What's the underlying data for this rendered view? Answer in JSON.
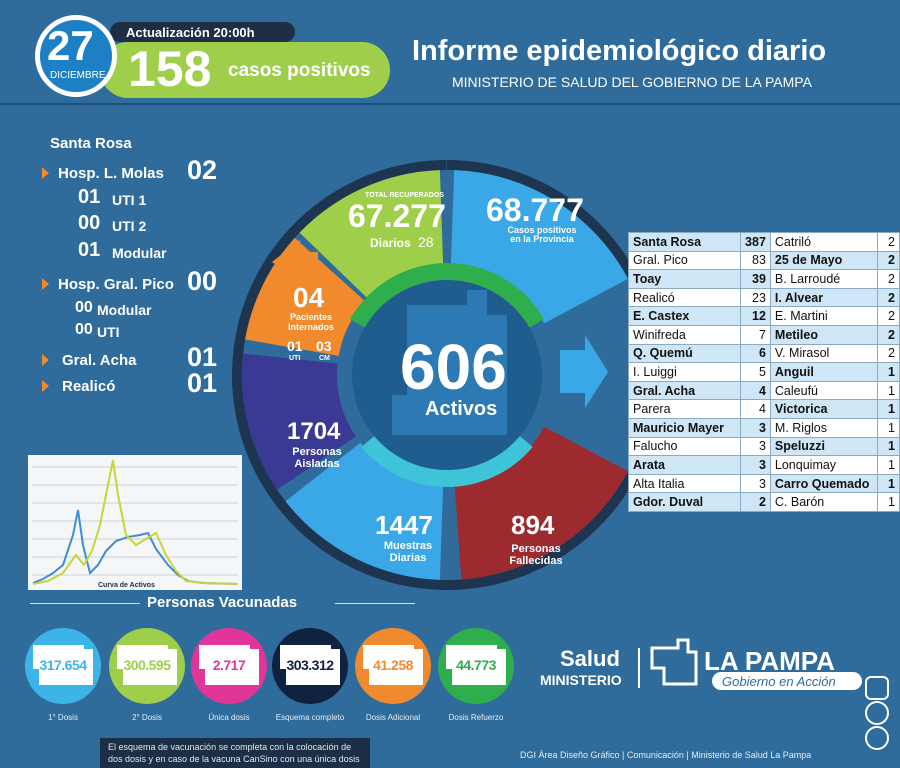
{
  "header": {
    "day": "27",
    "month": "DICIEMBRE",
    "update": "Actualización 20:00h",
    "cases": "158",
    "cases_label": "casos positivos",
    "title": "Informe epidemiológico diario",
    "subtitle": "MINISTERIO DE SALUD DEL GOBIERNO DE LA PAMPA"
  },
  "hospitals": {
    "city": "Santa Rosa",
    "items": [
      {
        "name": "Hosp. L. Molas",
        "value": "02",
        "sub": [
          {
            "value": "01",
            "name": "UTI 1"
          },
          {
            "value": "00",
            "name": "UTI 2"
          },
          {
            "value": "01",
            "name": "Modular"
          }
        ]
      },
      {
        "name": "Hosp. Gral. Pico",
        "value": "00",
        "sub": [
          {
            "value": "00",
            "name": "Modular"
          },
          {
            "value": "00",
            "name": "UTI"
          }
        ]
      },
      {
        "name": "Gral. Acha",
        "value": "01",
        "sub": []
      },
      {
        "name": "Realicó",
        "value": "01",
        "sub": []
      }
    ]
  },
  "wheel": {
    "recovered": {
      "label": "TOTAL RECUPERADOS",
      "value": "67.277",
      "daily_label": "Diarios",
      "daily": "28"
    },
    "positive": {
      "value": "68.777",
      "label": "Casos positivos en la Provincia"
    },
    "hospitalized": {
      "value": "04",
      "label": "Pacientes Internados",
      "uti": "01",
      "uti_label": "UTI",
      "cm": "03",
      "cm_label": "CM"
    },
    "active": {
      "value": "606",
      "label": "Activos"
    },
    "isolated": {
      "value": "1704",
      "label": "Personas Aisladas"
    },
    "tests": {
      "value": "1447",
      "label": "Muestras Diarias"
    },
    "deaths": {
      "value": "894",
      "label": "Personas Fallecidas"
    }
  },
  "table": {
    "columns": [
      [
        {
          "name": "Santa Rosa",
          "value": "387",
          "highlight": true
        },
        {
          "name": "Gral. Pico",
          "value": "83",
          "highlight": false
        },
        {
          "name": "Toay",
          "value": "39",
          "highlight": true
        },
        {
          "name": "Realicó",
          "value": "23",
          "highlight": false
        },
        {
          "name": "E. Castex",
          "value": "12",
          "highlight": true
        },
        {
          "name": "Winifreda",
          "value": "7",
          "highlight": false
        },
        {
          "name": "Q. Quemú",
          "value": "6",
          "highlight": true
        },
        {
          "name": "I. Luiggi",
          "value": "5",
          "highlight": false
        },
        {
          "name": "Gral. Acha",
          "value": "4",
          "highlight": true
        },
        {
          "name": "Parera",
          "value": "4",
          "highlight": false
        },
        {
          "name": "Mauricio Mayer",
          "value": "3",
          "highlight": true
        },
        {
          "name": "Falucho",
          "value": "3",
          "highlight": false
        },
        {
          "name": "Arata",
          "value": "3",
          "highlight": true
        },
        {
          "name": "Alta Italia",
          "value": "3",
          "highlight": false
        },
        {
          "name": "Gdor. Duval",
          "value": "2",
          "highlight": true
        }
      ],
      [
        {
          "name": "Catriló",
          "value": "2",
          "highlight": false
        },
        {
          "name": "25 de Mayo",
          "value": "2",
          "highlight": true
        },
        {
          "name": "B. Larroudé",
          "value": "2",
          "highlight": false
        },
        {
          "name": "I. Alvear",
          "value": "2",
          "highlight": true
        },
        {
          "name": "E. Martini",
          "value": "2",
          "highlight": false
        },
        {
          "name": "Metileo",
          "value": "2",
          "highlight": true
        },
        {
          "name": "V. Mirasol",
          "value": "2",
          "highlight": false
        },
        {
          "name": "Anguil",
          "value": "1",
          "highlight": true
        },
        {
          "name": "Caleufú",
          "value": "1",
          "highlight": false
        },
        {
          "name": "Victorica",
          "value": "1",
          "highlight": true
        },
        {
          "name": "M. Riglos",
          "value": "1",
          "highlight": false
        },
        {
          "name": "Speluzzi",
          "value": "1",
          "highlight": true
        },
        {
          "name": "Lonquimay",
          "value": "1",
          "highlight": false
        },
        {
          "name": "Carro Quemado",
          "value": "1",
          "highlight": true
        },
        {
          "name": "C. Barón",
          "value": "1",
          "highlight": false
        }
      ]
    ]
  },
  "curve": {
    "label": "Curva de Activos"
  },
  "vaccination": {
    "title": "Personas Vacunadas",
    "items": [
      {
        "value": "317.654",
        "label": "1° Dosis",
        "color": "#3db4e8"
      },
      {
        "value": "300.595",
        "label": "2° Dosis",
        "color": "#9fcf4a"
      },
      {
        "value": "2.717",
        "label": "Única dosis",
        "color": "#e0369a"
      },
      {
        "value": "303.312",
        "label": "Esquema completo",
        "color": "#0f2240"
      },
      {
        "value": "41.258",
        "label": "Dosis Adicional",
        "color": "#f08a2c"
      },
      {
        "value": "44.773",
        "label": "Dosis Refuerzo",
        "color": "#2fae4e"
      }
    ],
    "note": "El esquema de vacunación se completa con la colocación de dos dosis y en caso de la vacuna CanSino con una única dosis"
  },
  "footer": {
    "salud": "Salud",
    "ministerio": "MINISTERIO",
    "province": "LA PAMPA",
    "motto": "Gobierno en Acción",
    "credit": "DGI Área Diseño Gráfico | Comunicación | Ministerio de Salud La Pampa"
  }
}
